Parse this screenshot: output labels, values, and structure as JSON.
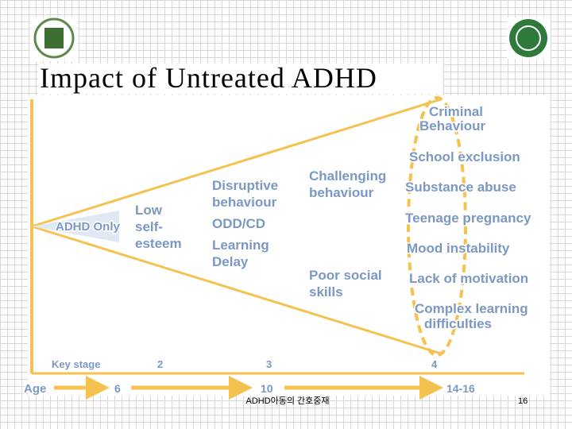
{
  "header": {
    "title": "Impact of Untreated ADHD"
  },
  "diagram": {
    "stages": [
      {
        "lines": [
          "ADHD Only"
        ]
      },
      {
        "lines": [
          "Low",
          "self-",
          "esteem"
        ]
      },
      {
        "lines": [
          "Disruptive",
          "behaviour"
        ]
      },
      {
        "lines": [
          "ODD/CD"
        ]
      },
      {
        "lines": [
          "Learning",
          "Delay"
        ]
      },
      {
        "lines": [
          "Challenging",
          "behaviour"
        ]
      },
      {
        "lines": [
          "Poor social",
          "skills"
        ]
      }
    ],
    "outcomes": [
      {
        "lines": [
          "Criminal",
          "Behaviour"
        ]
      },
      {
        "lines": [
          "School exclusion"
        ]
      },
      {
        "lines": [
          "Substance abuse"
        ]
      },
      {
        "lines": [
          "Teenage pregnancy"
        ]
      },
      {
        "lines": [
          "Mood instability"
        ]
      },
      {
        "lines": [
          "Lack of motivation"
        ]
      },
      {
        "lines": [
          "Complex learning",
          "difficulties"
        ]
      }
    ],
    "key_stage": {
      "label": "Key stage",
      "values": [
        "2",
        "3",
        "4"
      ]
    },
    "age": {
      "label": "Age",
      "values": [
        "6",
        "10",
        "14-16"
      ]
    }
  },
  "footer": {
    "text": "ADHD아동의 간호중재",
    "page": "16"
  }
}
